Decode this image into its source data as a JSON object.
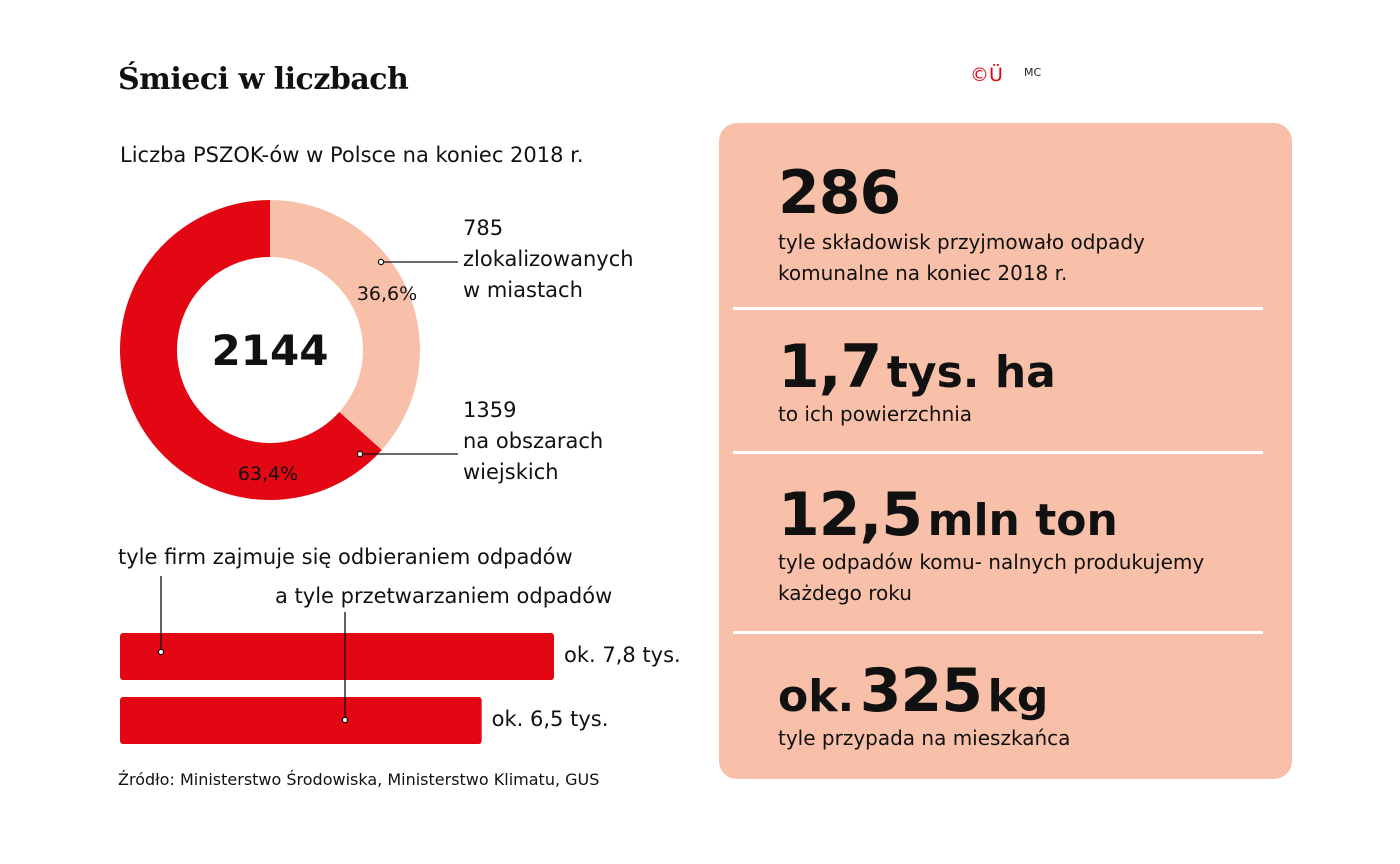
{
  "header": {
    "title": "Śmieci w liczbach",
    "logo_text": "©Ü",
    "logo_mark": "MC"
  },
  "colors": {
    "red": "#e30613",
    "peach": "#f8c0a8",
    "text": "#111111"
  },
  "chart_data": [
    {
      "type": "pie",
      "title": "Liczba PSZOK-ów w Polsce na koniec 2018 r.",
      "center_label": "2144",
      "slices": [
        {
          "value": 785,
          "percent_label": "36,6%",
          "label": [
            "785",
            "zlokalizowanych",
            "w miastach"
          ],
          "color": "#f8c0a8"
        },
        {
          "value": 1359,
          "percent_label": "63,4%",
          "label": [
            "1359",
            "na obszarach",
            "wiejskich"
          ],
          "color": "#e30613"
        }
      ]
    },
    {
      "type": "bar",
      "orientation": "horizontal",
      "categories": [
        "tyle firm zajmuje się odbieraniem odpadów",
        "a tyle przetwarzaniem odpadów"
      ],
      "values": [
        7.8,
        6.5
      ],
      "value_labels": [
        "ok. 7,8 tys.",
        "ok. 6,5 tys."
      ],
      "color": "#e30613",
      "xlim": [
        0,
        7.8
      ]
    }
  ],
  "panel": {
    "stats": [
      {
        "prefix": "",
        "number": "286",
        "unit": "",
        "desc": [
          "tyle składowisk przyjmowało odpady",
          "komunalne na koniec 2018 r."
        ]
      },
      {
        "prefix": "",
        "number": "1,7",
        "unit": "tys. ha",
        "desc": [
          "to ich powierzchnia"
        ]
      },
      {
        "prefix": "",
        "number": "12,5",
        "unit": "mln ton",
        "desc": [
          "tyle odpadów komu- nalnych produkujemy",
          "każdego roku"
        ]
      },
      {
        "prefix": "ok.",
        "number": "325",
        "unit": "kg",
        "desc": [
          "tyle przypada na mieszkańca"
        ]
      }
    ]
  },
  "footer": {
    "source": "Źródło: Ministerstwo Środowiska, Ministerstwo Klimatu, GUS"
  }
}
